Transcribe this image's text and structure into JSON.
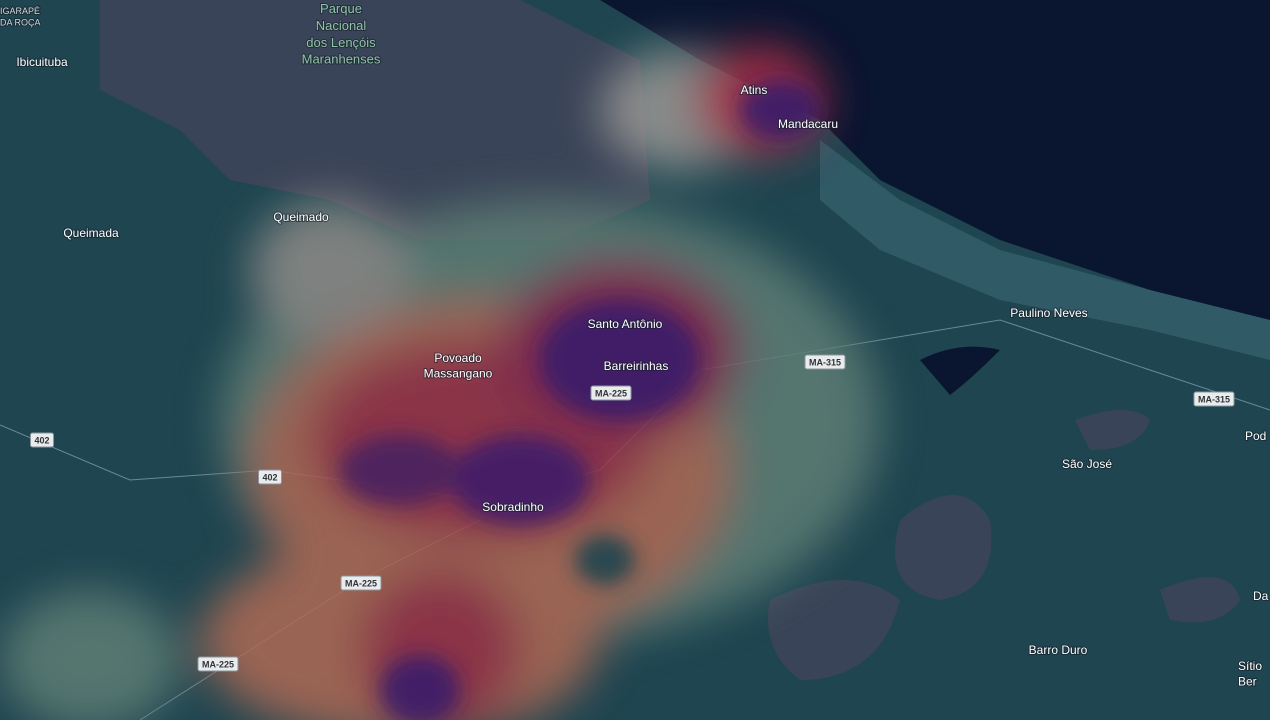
{
  "map": {
    "places": [
      {
        "lines": [
          "IGARAPÉ",
          "DA ROÇA"
        ]
      },
      {
        "lines": [
          "Parque",
          "Nacional",
          "dos Lençóis",
          "Maranhenses"
        ]
      },
      {
        "lines": [
          "Ibicuituba"
        ]
      },
      {
        "lines": [
          "Queimada"
        ]
      },
      {
        "lines": [
          "Queimado"
        ]
      },
      {
        "lines": [
          "Atins"
        ]
      },
      {
        "lines": [
          "Mandacaru"
        ]
      },
      {
        "lines": [
          "Santo Antônio"
        ]
      },
      {
        "lines": [
          "Povoado",
          "Massangano"
        ]
      },
      {
        "lines": [
          "Barreirinhas"
        ]
      },
      {
        "lines": [
          "Sobradinho"
        ]
      },
      {
        "lines": [
          "Paulino Neves"
        ]
      },
      {
        "lines": [
          "São José"
        ]
      },
      {
        "lines": [
          "Barro Duro"
        ]
      },
      {
        "lines": [
          "Pod"
        ]
      },
      {
        "lines": [
          "Da"
        ]
      },
      {
        "lines": [
          "Sítio",
          "Ber"
        ]
      }
    ],
    "shields": [
      "MA-225",
      "MA-225",
      "MA-225",
      "MA-315",
      "MA-315",
      "402",
      "402"
    ]
  }
}
